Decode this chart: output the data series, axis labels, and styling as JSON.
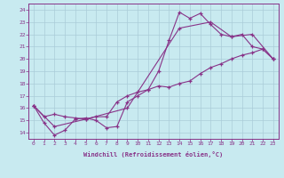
{
  "xlabel": "Windchill (Refroidissement éolien,°C)",
  "bg_color": "#c8eaf0",
  "grid_color": "#aaccd8",
  "line_color": "#883388",
  "xlim": [
    -0.5,
    23.5
  ],
  "ylim": [
    13.5,
    24.5
  ],
  "yticks": [
    14,
    15,
    16,
    17,
    18,
    19,
    20,
    21,
    22,
    23,
    24
  ],
  "xticks": [
    0,
    1,
    2,
    3,
    4,
    5,
    6,
    7,
    8,
    9,
    10,
    11,
    12,
    13,
    14,
    15,
    16,
    17,
    18,
    19,
    20,
    21,
    22,
    23
  ],
  "line1_x": [
    0,
    1,
    2,
    3,
    4,
    5,
    6,
    7,
    8,
    9,
    10,
    11,
    12,
    13,
    14,
    15,
    16,
    17,
    18,
    19,
    20,
    21,
    22,
    23
  ],
  "line1_y": [
    16.2,
    14.8,
    13.8,
    14.2,
    15.1,
    15.2,
    15.0,
    14.4,
    14.5,
    16.5,
    17.0,
    17.5,
    19.0,
    21.5,
    23.8,
    23.3,
    23.7,
    22.8,
    22.0,
    21.8,
    22.0,
    21.0,
    20.8,
    20.0
  ],
  "line2_x": [
    0,
    1,
    2,
    3,
    4,
    5,
    6,
    7,
    8,
    9,
    10,
    11,
    12,
    13,
    14,
    15,
    16,
    17,
    18,
    19,
    20,
    21,
    22,
    23
  ],
  "line2_y": [
    16.2,
    15.3,
    15.5,
    15.3,
    15.2,
    15.1,
    15.3,
    15.3,
    16.5,
    17.0,
    17.3,
    17.5,
    17.8,
    17.7,
    18.0,
    18.2,
    18.8,
    19.3,
    19.6,
    20.0,
    20.3,
    20.5,
    20.8,
    20.0
  ],
  "line3_x": [
    0,
    2,
    5,
    9,
    14,
    17,
    19,
    21,
    23
  ],
  "line3_y": [
    16.2,
    14.5,
    15.1,
    16.0,
    22.5,
    23.0,
    21.8,
    22.0,
    20.0
  ]
}
